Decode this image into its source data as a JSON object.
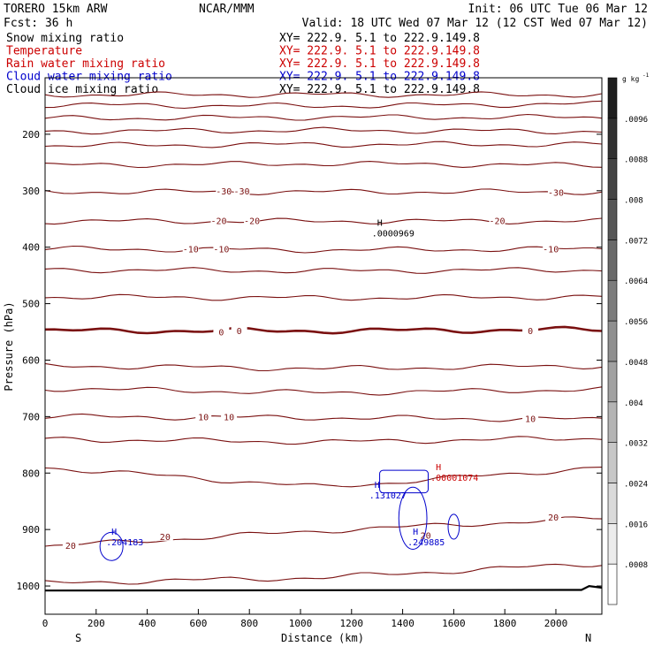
{
  "header": {
    "model": "TORERO  15km ARW",
    "center": "NCAR/MMM",
    "init": "Init: 06 UTC Tue 06 Mar 12",
    "fcst": "Fcst:   36 h",
    "valid": "Valid: 18 UTC Wed 07 Mar 12 (12 CST Wed 07 Mar 12)"
  },
  "legend": [
    {
      "label": "Snow mixing ratio",
      "xy": "XY= 222.9.  5.1 to 222.9.149.8",
      "color": "#000000"
    },
    {
      "label": "Temperature",
      "xy": "XY= 222.9.  5.1 to 222.9.149.8",
      "color": "#cc0000"
    },
    {
      "label": "Rain water mixing ratio",
      "xy": "XY= 222.9.  5.1 to 222.9.149.8",
      "color": "#cc0000"
    },
    {
      "label": "Cloud water mixing ratio",
      "xy": "XY= 222.9.  5.1 to 222.9.149.8",
      "color": "#0000cc"
    },
    {
      "label": "Cloud ice mixing ratio",
      "xy": "XY= 222.9.  5.1 to 222.9.149.8",
      "color": "#000000"
    }
  ],
  "chart_data": {
    "type": "line",
    "xlabel": "Distance (km)",
    "ylabel": "Pressure (hPa)",
    "x_ticks": [
      0,
      200,
      400,
      600,
      800,
      1000,
      1200,
      1400,
      1600,
      1800,
      2000
    ],
    "y_ticks": [
      200,
      300,
      400,
      500,
      600,
      700,
      800,
      900,
      1000
    ],
    "xlim": [
      0,
      2180
    ],
    "ylim": [
      100,
      1050
    ],
    "y_inverted": true,
    "x_end_labels": {
      "left": "S",
      "right": "N"
    },
    "colorbar": {
      "unit": "g kg",
      "unit_exp": "-1",
      "levels": [
        ".0008",
        ".0016",
        ".0024",
        ".0032",
        ".004",
        ".0048",
        ".0056",
        ".0064",
        ".0072",
        ".008",
        ".0088",
        ".0096"
      ]
    },
    "temperature_contours": [
      {
        "p": [
          130,
          130,
          130
        ]
      },
      {
        "p": [
          148,
          150,
          146
        ]
      },
      {
        "p": [
          172,
          170,
          170
        ]
      },
      {
        "p": [
          195,
          193,
          195
        ]
      },
      {
        "p": [
          220,
          218,
          218
        ]
      },
      {
        "p": [
          255,
          252,
          255
        ]
      },
      {
        "p": [
          302,
          302,
          302
        ]
      },
      {
        "p": [
          354,
          354,
          354
        ]
      },
      {
        "p": [
          403,
          405,
          403
        ]
      },
      {
        "p": [
          440,
          442,
          440
        ]
      },
      {
        "p": [
          488,
          490,
          488
        ]
      },
      {
        "p": [
          548,
          548,
          546
        ],
        "bold": true
      },
      {
        "p": [
          610,
          615,
          610
        ]
      },
      {
        "p": [
          650,
          658,
          652
        ]
      },
      {
        "p": [
          700,
          702,
          705
        ]
      },
      {
        "p": [
          740,
          745,
          738
        ]
      },
      {
        "p": [
          790,
          825,
          790
        ]
      },
      {
        "p": [
          930,
          902,
          880
        ]
      },
      {
        "p": [
          995,
          985,
          960
        ]
      }
    ],
    "temperature_labels": [
      {
        "text": "-30",
        "x": 700,
        "p": 300
      },
      {
        "text": "-30",
        "x": 770,
        "p": 300
      },
      {
        "text": "-30",
        "x": 2000,
        "p": 303
      },
      {
        "text": "-20",
        "x": 680,
        "p": 353
      },
      {
        "text": "-20",
        "x": 810,
        "p": 353
      },
      {
        "text": "-20",
        "x": 1770,
        "p": 353
      },
      {
        "text": "-10",
        "x": 570,
        "p": 403
      },
      {
        "text": "-10",
        "x": 690,
        "p": 403
      },
      {
        "text": "-10",
        "x": 1980,
        "p": 403
      },
      {
        "text": "0",
        "x": 690,
        "p": 550
      },
      {
        "text": "0",
        "x": 760,
        "p": 548
      },
      {
        "text": "0",
        "x": 1900,
        "p": 548
      },
      {
        "text": "10",
        "x": 620,
        "p": 700
      },
      {
        "text": "10",
        "x": 720,
        "p": 700
      },
      {
        "text": "10",
        "x": 1900,
        "p": 703
      },
      {
        "text": "20",
        "x": 100,
        "p": 928
      },
      {
        "text": "20",
        "x": 470,
        "p": 912
      },
      {
        "text": "20",
        "x": 1490,
        "p": 910
      },
      {
        "text": "20",
        "x": 1990,
        "p": 878
      }
    ],
    "extrema": [
      {
        "symbol": "H",
        "value": ".0000969",
        "x": 1300,
        "p": 373,
        "color": "#000000"
      },
      {
        "symbol": "H",
        "value": ".00001074",
        "x": 1530,
        "p": 806,
        "color": "#cc0000"
      },
      {
        "symbol": "H",
        "value": ".131027",
        "x": 1290,
        "p": 837,
        "color": "#0000cc"
      },
      {
        "symbol": "H",
        "value": ".204183",
        "x": 260,
        "p": 920,
        "color": "#0000cc"
      },
      {
        "symbol": "H",
        "value": ".249885",
        "x": 1440,
        "p": 920,
        "color": "#0000cc"
      }
    ],
    "surface_pressure": [
      {
        "x": 0,
        "p": 1008
      },
      {
        "x": 2100,
        "p": 1007
      },
      {
        "x": 2130,
        "p": 1000
      },
      {
        "x": 2180,
        "p": 1003
      }
    ]
  }
}
